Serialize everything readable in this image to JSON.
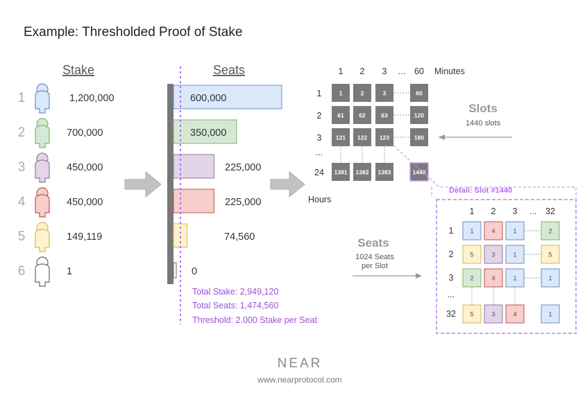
{
  "title": "Example: Thresholded Proof of Stake",
  "stake": {
    "header": "Stake",
    "rows": [
      {
        "index": "1",
        "amount": "1,200,000"
      },
      {
        "index": "2",
        "amount": "700,000"
      },
      {
        "index": "3",
        "amount": "450,000"
      },
      {
        "index": "4",
        "amount": "450,000"
      },
      {
        "index": "5",
        "amount": "149,119"
      },
      {
        "index": "6",
        "amount": "1"
      }
    ]
  },
  "seats": {
    "header": "Seats",
    "rows": [
      {
        "value": 600000,
        "label": "600,000"
      },
      {
        "value": 350000,
        "label": "350,000"
      },
      {
        "value": 225000,
        "label": "225,000"
      },
      {
        "value": 225000,
        "label": "225,000"
      },
      {
        "value": 74560,
        "label": "74,560"
      },
      {
        "value": 0,
        "label": "0"
      }
    ],
    "total_stake": "Total Stake: 2,949,120",
    "total_seats": "Total Seats: 1,474,560",
    "threshold": "Threshold: 2.000 Stake per Seat"
  },
  "validator_colors": [
    {
      "fill": "#dae8fc",
      "stroke": "#6c8ebf"
    },
    {
      "fill": "#d5e8d4",
      "stroke": "#82b366"
    },
    {
      "fill": "#e1d5e7",
      "stroke": "#9673a6"
    },
    {
      "fill": "#f8cecc",
      "stroke": "#b85450"
    },
    {
      "fill": "#fff2cc",
      "stroke": "#d6b656"
    },
    {
      "fill": "#ffffff",
      "stroke": "#666666"
    }
  ],
  "slots_grid": {
    "col_headers": [
      "1",
      "2",
      "3",
      "...",
      "60"
    ],
    "col_unit": "Minutes",
    "row_headers": [
      "1",
      "2",
      "3",
      "...",
      "24"
    ],
    "row_unit": "Hours",
    "cells": [
      [
        "1",
        "2",
        "3",
        "60"
      ],
      [
        "61",
        "62",
        "63",
        "120"
      ],
      [
        "121",
        "122",
        "123",
        "180"
      ],
      [
        "1381",
        "1382",
        "1383",
        "1440"
      ]
    ],
    "slots_title": "Slots",
    "slots_sub": "1440 slots"
  },
  "seats_note": {
    "title": "Seats",
    "line1": "1024 Seats",
    "line2": "per Slot"
  },
  "detail": {
    "title": "Detail: Slot #1440",
    "col_headers": [
      "1",
      "2",
      "3",
      "...",
      "32"
    ],
    "row_headers": [
      "1",
      "2",
      "3",
      "...",
      "32"
    ],
    "cells": [
      [
        "1",
        "4",
        "1",
        "2"
      ],
      [
        "5",
        "3",
        "1",
        "5"
      ],
      [
        "2",
        "4",
        "1",
        "1"
      ],
      [
        "5",
        "3",
        "4",
        "1"
      ]
    ]
  },
  "footer": {
    "logo": "NEAR",
    "url": "www.nearprotocol.com"
  }
}
